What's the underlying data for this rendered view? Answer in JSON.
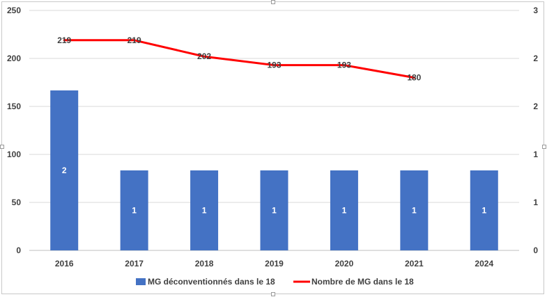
{
  "chart_data": {
    "type": "bar",
    "categories": [
      "2016",
      "2017",
      "2018",
      "2019",
      "2020",
      "2021",
      "2024"
    ],
    "series": [
      {
        "name": "MG déconventionnés dans le 18",
        "type": "bar",
        "axis": "right",
        "values": [
          2,
          1,
          1,
          1,
          1,
          1,
          1
        ],
        "data_labels": [
          "2",
          "1",
          "1",
          "1",
          "1",
          "1",
          "1"
        ],
        "color": "#4472C4"
      },
      {
        "name": "Nombre de MG dans le 18",
        "type": "line",
        "axis": "left",
        "values": [
          219,
          219,
          202,
          193,
          193,
          180,
          null
        ],
        "data_labels": [
          "219",
          "219",
          "202",
          "193",
          "193",
          "180",
          ""
        ],
        "color": "#FF0000"
      }
    ],
    "y_left": {
      "ylim": [
        0,
        250
      ],
      "ticks": [
        "0",
        "50",
        "100",
        "150",
        "200",
        "250"
      ]
    },
    "y_right": {
      "ylim": [
        0,
        3
      ],
      "ticks": [
        "0",
        "1",
        "1",
        "2",
        "2",
        "3"
      ]
    },
    "grid": true,
    "legend": "bottom",
    "title": "",
    "xlabel": "",
    "ylabel": ""
  }
}
